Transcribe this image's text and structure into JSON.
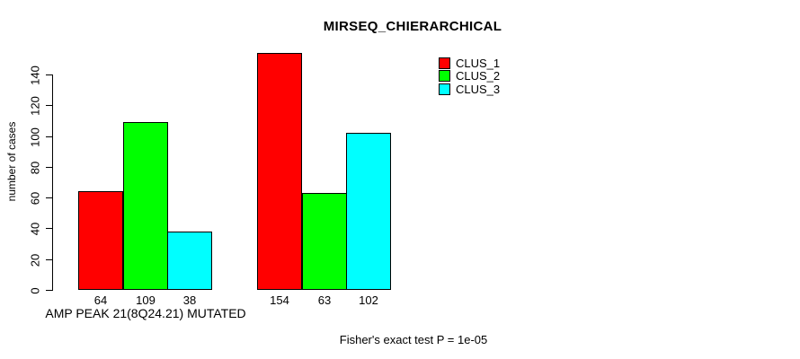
{
  "chart_data": {
    "type": "bar",
    "title": "MIRSEQ_CHIERARCHICAL",
    "ylabel": "number of cases",
    "annotation": "Fisher's exact test P = 1e-05",
    "categories": [
      "AMP PEAK 21(8Q24.21) MUTATED",
      ""
    ],
    "series": [
      {
        "name": "CLUS_1",
        "color": "#ff0000",
        "values": [
          64,
          154
        ]
      },
      {
        "name": "CLUS_2",
        "color": "#00ff00",
        "values": [
          109,
          63
        ]
      },
      {
        "name": "CLUS_3",
        "color": "#00ffff",
        "values": [
          38,
          102
        ]
      }
    ],
    "yticks": [
      0,
      20,
      40,
      60,
      80,
      100,
      120,
      140
    ],
    "ylim": [
      0,
      140
    ],
    "grid": false,
    "legend_position": "top-right",
    "bar_border_color": "#000000",
    "value_labels_shown": true
  }
}
